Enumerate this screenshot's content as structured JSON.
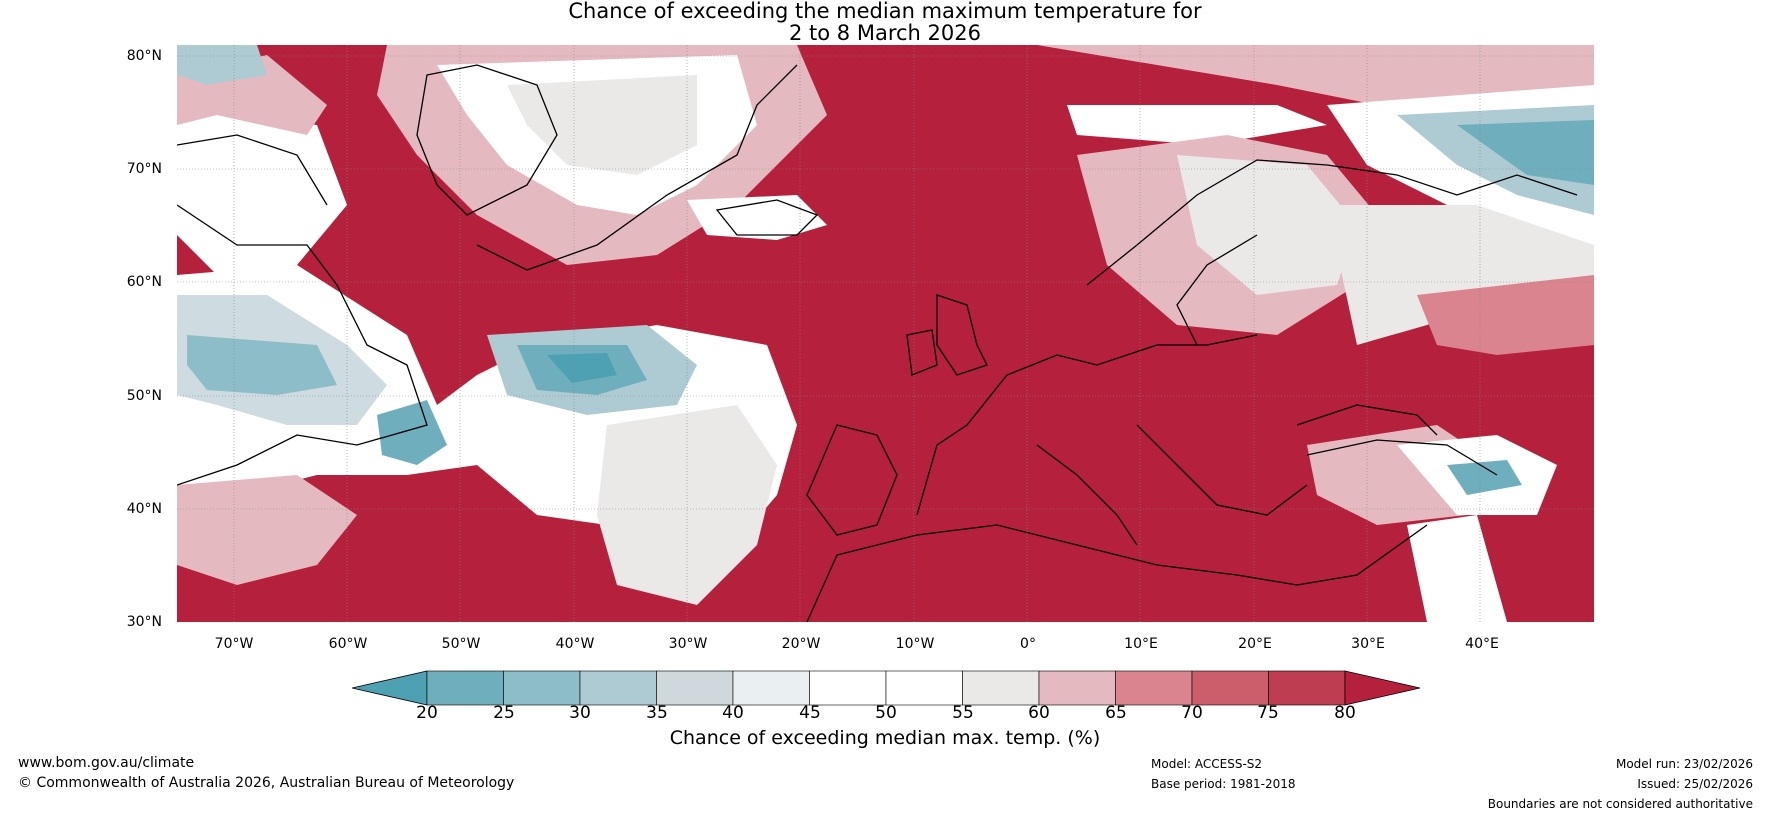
{
  "title": {
    "line1": "Chance of exceeding the median maximum temperature for",
    "line2": "2 to 8 March 2026"
  },
  "map": {
    "lat_labels": [
      "80°N",
      "70°N",
      "60°N",
      "50°N",
      "40°N",
      "30°N"
    ],
    "lon_labels": [
      "70°W",
      "60°W",
      "50°W",
      "40°W",
      "30°W",
      "20°W",
      "10°W",
      "0°",
      "10°E",
      "20°E",
      "30°E",
      "40°E"
    ],
    "extent": {
      "lon_min": -75,
      "lon_max": 50,
      "lat_min": 30,
      "lat_max": 81
    },
    "colors": {
      "high": "#b5203c",
      "ocean_land_bg": "#ffffff",
      "low": "#4ea1b2"
    }
  },
  "colorbar": {
    "ticks": [
      "20",
      "25",
      "30",
      "35",
      "40",
      "45",
      "50",
      "55",
      "60",
      "65",
      "70",
      "75",
      "80"
    ],
    "colors": [
      "#4ea1b2",
      "#6faebd",
      "#8dbdc8",
      "#aecbd3",
      "#ced8dd",
      "#eaf0f2",
      "#ffffff",
      "#ffffff",
      "#ebe8e8",
      "#e5b9c0",
      "#d9848f",
      "#cc5e6c",
      "#bf3d50",
      "#b5203c"
    ],
    "label": "Chance of exceeding median max. temp. (%)"
  },
  "footer": {
    "url": "www.bom.gov.au/climate",
    "copyright": "© Commonwealth of Australia 2026, Australian Bureau of Meteorology",
    "model": "Model: ACCESS-S2",
    "base_period": "Base period: 1981-2018",
    "model_run": "Model run: 23/02/2026",
    "issued": "Issued: 25/02/2026",
    "disclaimer": "Boundaries are not considered authoritative"
  }
}
